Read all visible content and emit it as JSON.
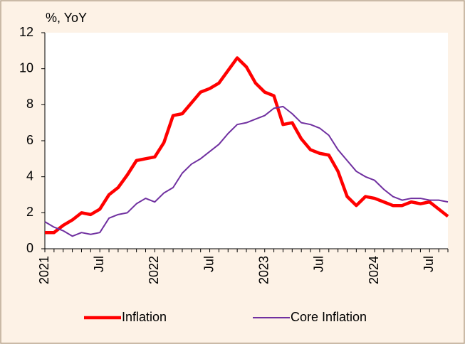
{
  "chart_data": {
    "type": "line",
    "y_label": "%, YoY",
    "categories": [
      "2021",
      null,
      null,
      null,
      null,
      null,
      "Jul",
      null,
      null,
      null,
      null,
      null,
      "2022",
      null,
      null,
      null,
      null,
      null,
      "Jul",
      null,
      null,
      null,
      null,
      null,
      "2023",
      null,
      null,
      null,
      null,
      null,
      "Jul",
      null,
      null,
      null,
      null,
      null,
      "2024",
      null,
      null,
      null,
      null,
      null,
      "Jul",
      null,
      null
    ],
    "series": [
      {
        "name": "Inflation",
        "color": "#ff0000",
        "values": [
          0.9,
          0.9,
          1.3,
          1.6,
          2.0,
          1.9,
          2.2,
          3.0,
          3.4,
          4.1,
          4.9,
          5.0,
          5.1,
          5.9,
          7.4,
          7.5,
          8.1,
          8.7,
          8.9,
          9.2,
          9.9,
          10.6,
          10.1,
          9.2,
          8.7,
          8.5,
          6.9,
          7.0,
          6.1,
          5.5,
          5.3,
          5.2,
          4.3,
          2.9,
          2.4,
          2.9,
          2.8,
          2.6,
          2.4,
          2.4,
          2.6,
          2.5,
          2.6,
          2.2,
          1.8
        ]
      },
      {
        "name": "Core Inflation",
        "color": "#7030a0",
        "values": [
          1.5,
          1.2,
          1.0,
          0.7,
          0.9,
          0.8,
          0.9,
          1.7,
          1.9,
          2.0,
          2.5,
          2.8,
          2.6,
          3.1,
          3.4,
          4.2,
          4.7,
          5.0,
          5.4,
          5.8,
          6.4,
          6.9,
          7.0,
          7.2,
          7.4,
          7.8,
          7.9,
          7.5,
          7.0,
          6.9,
          6.7,
          6.3,
          5.5,
          4.9,
          4.3,
          4.0,
          3.8,
          3.3,
          2.9,
          2.7,
          2.8,
          2.8,
          2.7,
          2.7,
          2.6
        ]
      }
    ],
    "ylim": [
      0,
      12
    ],
    "yticks": [
      0,
      2,
      4,
      6,
      8,
      10,
      12
    ],
    "grid": false,
    "legend": "bottom"
  }
}
